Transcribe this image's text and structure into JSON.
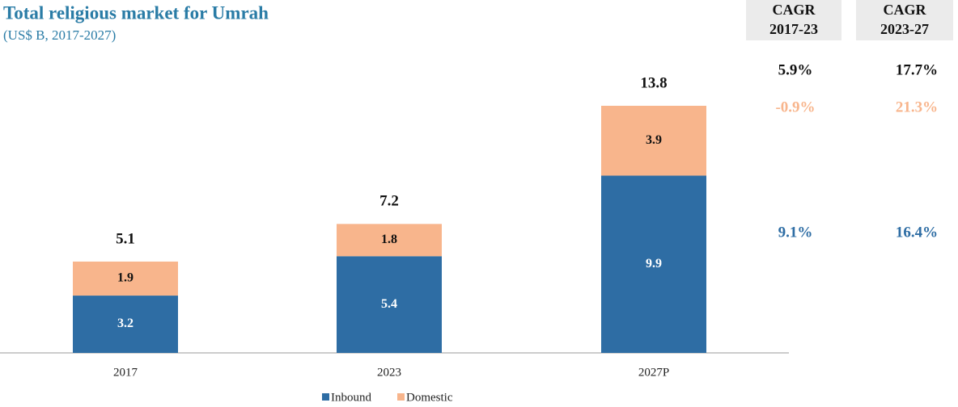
{
  "chart_data": {
    "type": "bar",
    "stacked": true,
    "title": "Total religious market for Umrah",
    "subtitle": "(US$ B, 2017-2027)",
    "categories": [
      "2017",
      "2023",
      "2027P"
    ],
    "series": [
      {
        "name": "Inbound",
        "color": "#2e6da4",
        "values": [
          3.2,
          5.4,
          9.9
        ]
      },
      {
        "name": "Domestic",
        "color": "#f8b58c",
        "values": [
          1.9,
          1.8,
          3.9
        ]
      }
    ],
    "totals": [
      5.1,
      7.2,
      13.8
    ],
    "cagr": {
      "headers": [
        [
          "CAGR",
          "2017-23"
        ],
        [
          "CAGR",
          "2023-27"
        ]
      ],
      "total": [
        "5.9%",
        "17.7%"
      ],
      "domestic": [
        "-0.9%",
        "21.3%"
      ],
      "inbound": [
        "9.1%",
        "16.4%"
      ]
    }
  }
}
